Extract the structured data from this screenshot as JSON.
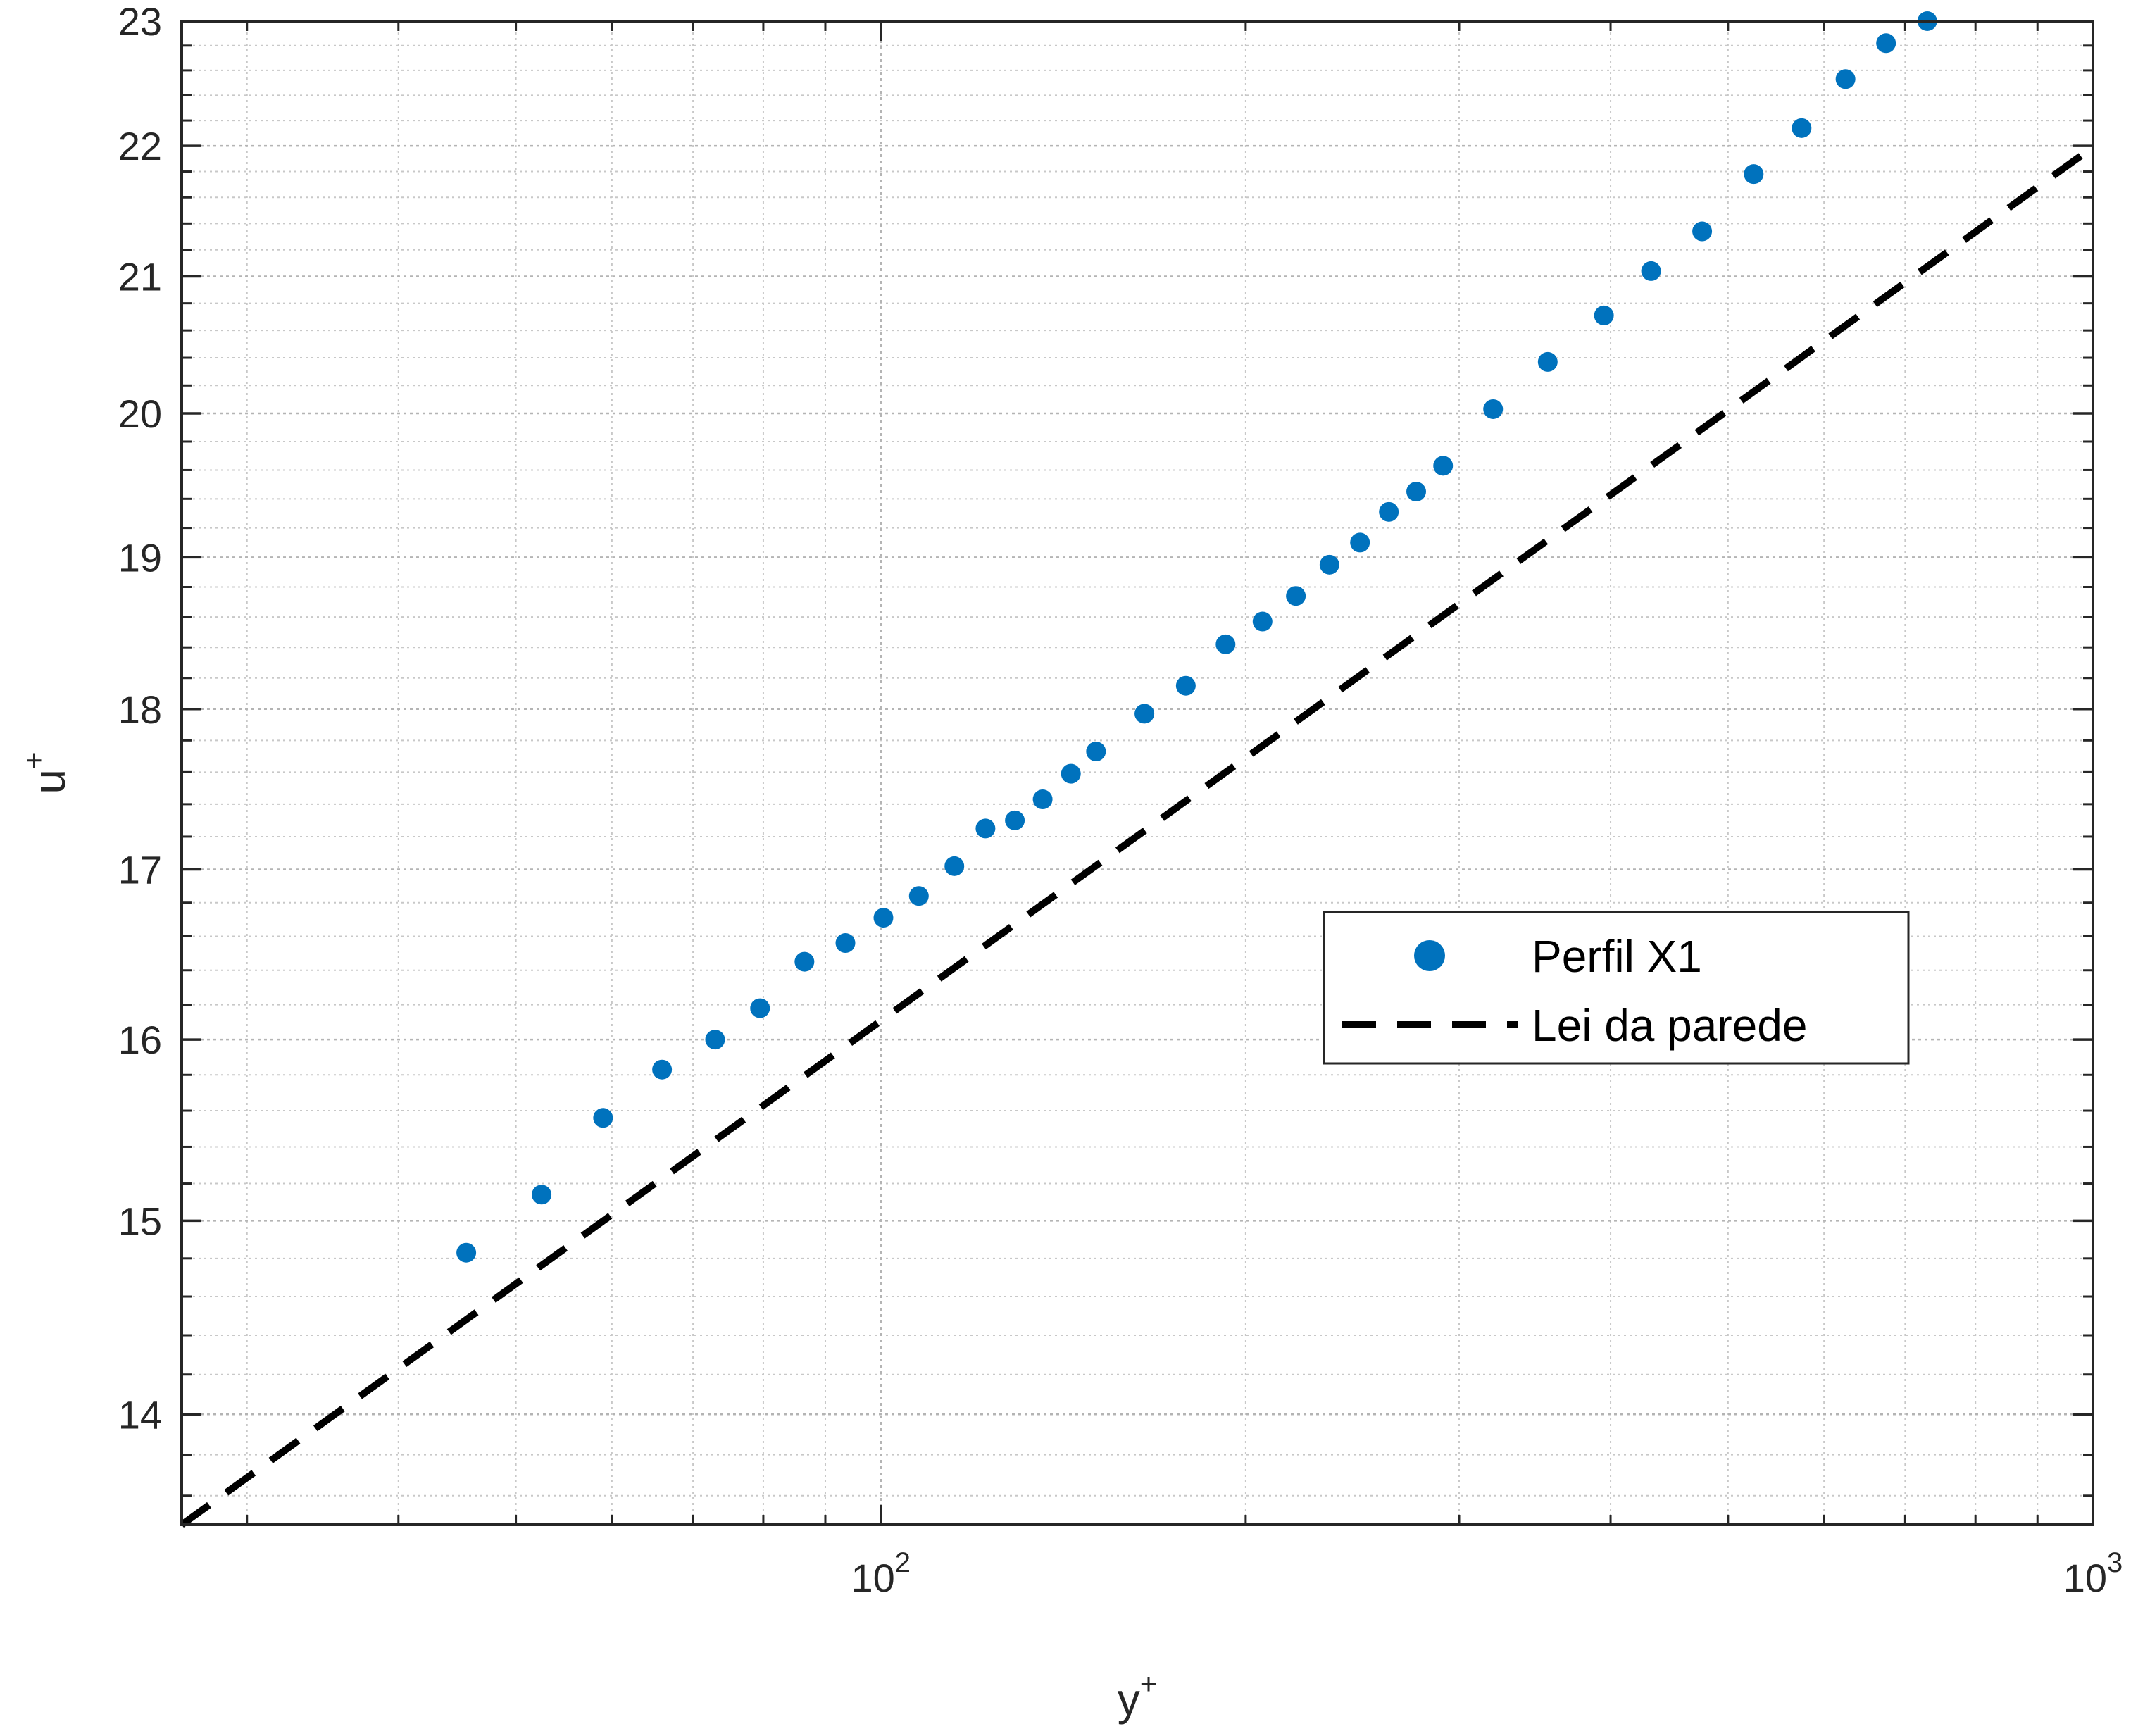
{
  "chart_data": {
    "type": "scatter",
    "xscale": "log",
    "yscale": "log",
    "xlim": [
      26.5,
      1000
    ],
    "ylim": [
      13.46,
      23.0
    ],
    "grid": true,
    "minor_grid": true,
    "box": true,
    "xlabel": "y",
    "xlabel_sup": "+",
    "ylabel": "u",
    "ylabel_sup": "+",
    "x_ticks": [
      {
        "value": 100,
        "base": "10",
        "exp": "2"
      },
      {
        "value": 1000,
        "base": "10",
        "exp": "3"
      }
    ],
    "y_ticks": [
      {
        "value": 14,
        "label": "14"
      },
      {
        "value": 15,
        "label": "15"
      },
      {
        "value": 16,
        "label": "16"
      },
      {
        "value": 17,
        "label": "17"
      },
      {
        "value": 18,
        "label": "18"
      },
      {
        "value": 19,
        "label": "19"
      },
      {
        "value": 20,
        "label": "20"
      },
      {
        "value": 21,
        "label": "21"
      },
      {
        "value": 22,
        "label": "22"
      },
      {
        "value": 23,
        "label": "23"
      }
    ],
    "legend_position": "center-right",
    "series": [
      {
        "name": "Perfil X1",
        "style": "markers",
        "color": "#0072BD",
        "points": [
          [
            45.5,
            14.83
          ],
          [
            52.5,
            15.14
          ],
          [
            59.0,
            15.56
          ],
          [
            66.0,
            15.83
          ],
          [
            73.0,
            16.0
          ],
          [
            79.5,
            16.18
          ],
          [
            86.5,
            16.45
          ],
          [
            93.5,
            16.56
          ],
          [
            100.5,
            16.71
          ],
          [
            107.5,
            16.84
          ],
          [
            115.0,
            17.02
          ],
          [
            122.0,
            17.25
          ],
          [
            129.0,
            17.3
          ],
          [
            136.0,
            17.43
          ],
          [
            143.5,
            17.59
          ],
          [
            150.5,
            17.73
          ],
          [
            165.0,
            17.97
          ],
          [
            178.5,
            18.15
          ],
          [
            192.5,
            18.42
          ],
          [
            206.5,
            18.57
          ],
          [
            220.0,
            18.74
          ],
          [
            234.5,
            18.95
          ],
          [
            248.5,
            19.1
          ],
          [
            262.5,
            19.31
          ],
          [
            276.5,
            19.45
          ],
          [
            291.0,
            19.63
          ],
          [
            320.0,
            20.03
          ],
          [
            355.0,
            20.37
          ],
          [
            395.0,
            20.71
          ],
          [
            432.0,
            21.04
          ],
          [
            476.0,
            21.34
          ],
          [
            525.0,
            21.78
          ],
          [
            575.0,
            22.14
          ],
          [
            625.0,
            22.53
          ],
          [
            675.0,
            22.82
          ],
          [
            730.0,
            23.0
          ]
        ]
      },
      {
        "name": "Lei da parede",
        "style": "dashed-line",
        "color": "#000000",
        "points": [
          [
            26.5,
            13.46
          ],
          [
            1000,
            21.99
          ]
        ]
      }
    ]
  }
}
